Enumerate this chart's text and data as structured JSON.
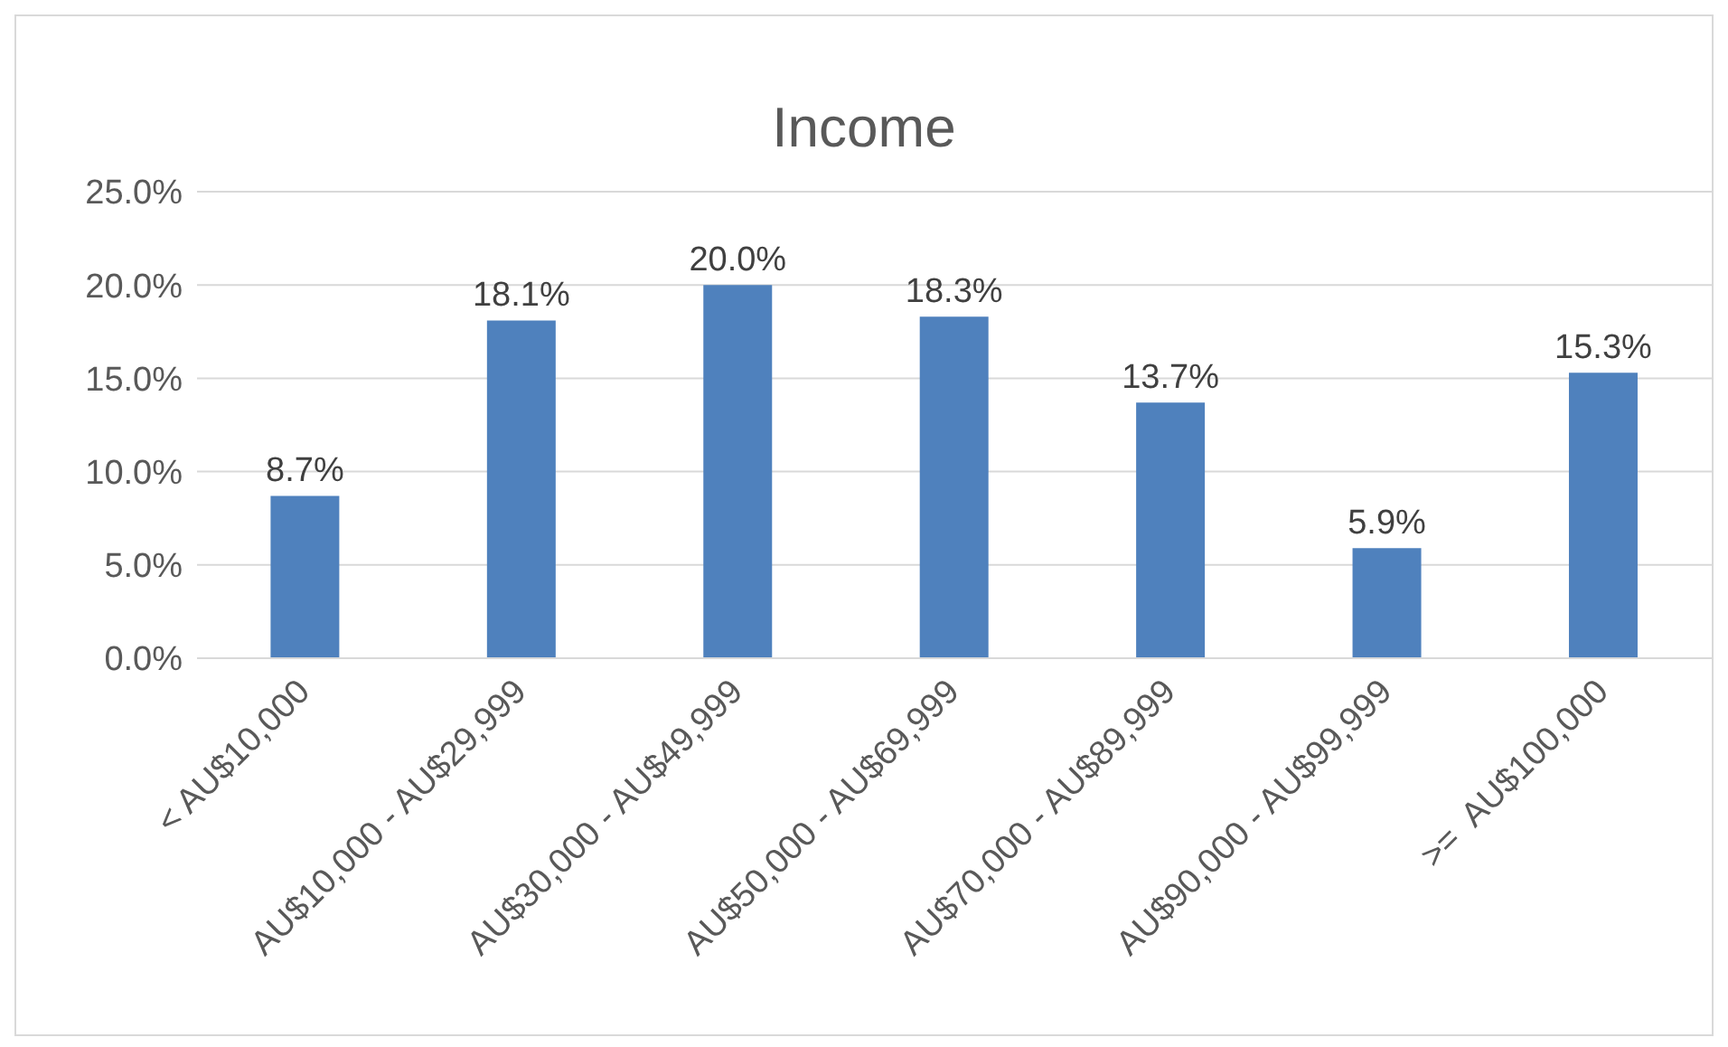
{
  "chart_data": {
    "type": "bar",
    "title": "Income",
    "categories": [
      "< AU$10,000",
      "AU$10,000 - AU$29,999",
      "AU$30,000 - AU$49,999",
      "AU$50,000 - AU$69,999",
      "AU$70,000 - AU$89,999",
      "AU$90,000 - AU$99,999",
      ">=  AU$100,000"
    ],
    "values": [
      8.7,
      18.1,
      20.0,
      18.3,
      13.7,
      5.9,
      15.3
    ],
    "value_labels": [
      "8.7%",
      "18.1%",
      "20.0%",
      "18.3%",
      "13.7%",
      "5.9%",
      "15.3%"
    ],
    "color": "#4f81bd",
    "ylim": [
      0,
      25
    ],
    "yticks": [
      {
        "value": 0,
        "label": "0.0%"
      },
      {
        "value": 5,
        "label": "5.0%"
      },
      {
        "value": 10,
        "label": "10.0%"
      },
      {
        "value": 15,
        "label": "15.0%"
      },
      {
        "value": 20,
        "label": "20.0%"
      },
      {
        "value": 25,
        "label": "25.0%"
      }
    ],
    "grid": "y",
    "legend": false
  }
}
